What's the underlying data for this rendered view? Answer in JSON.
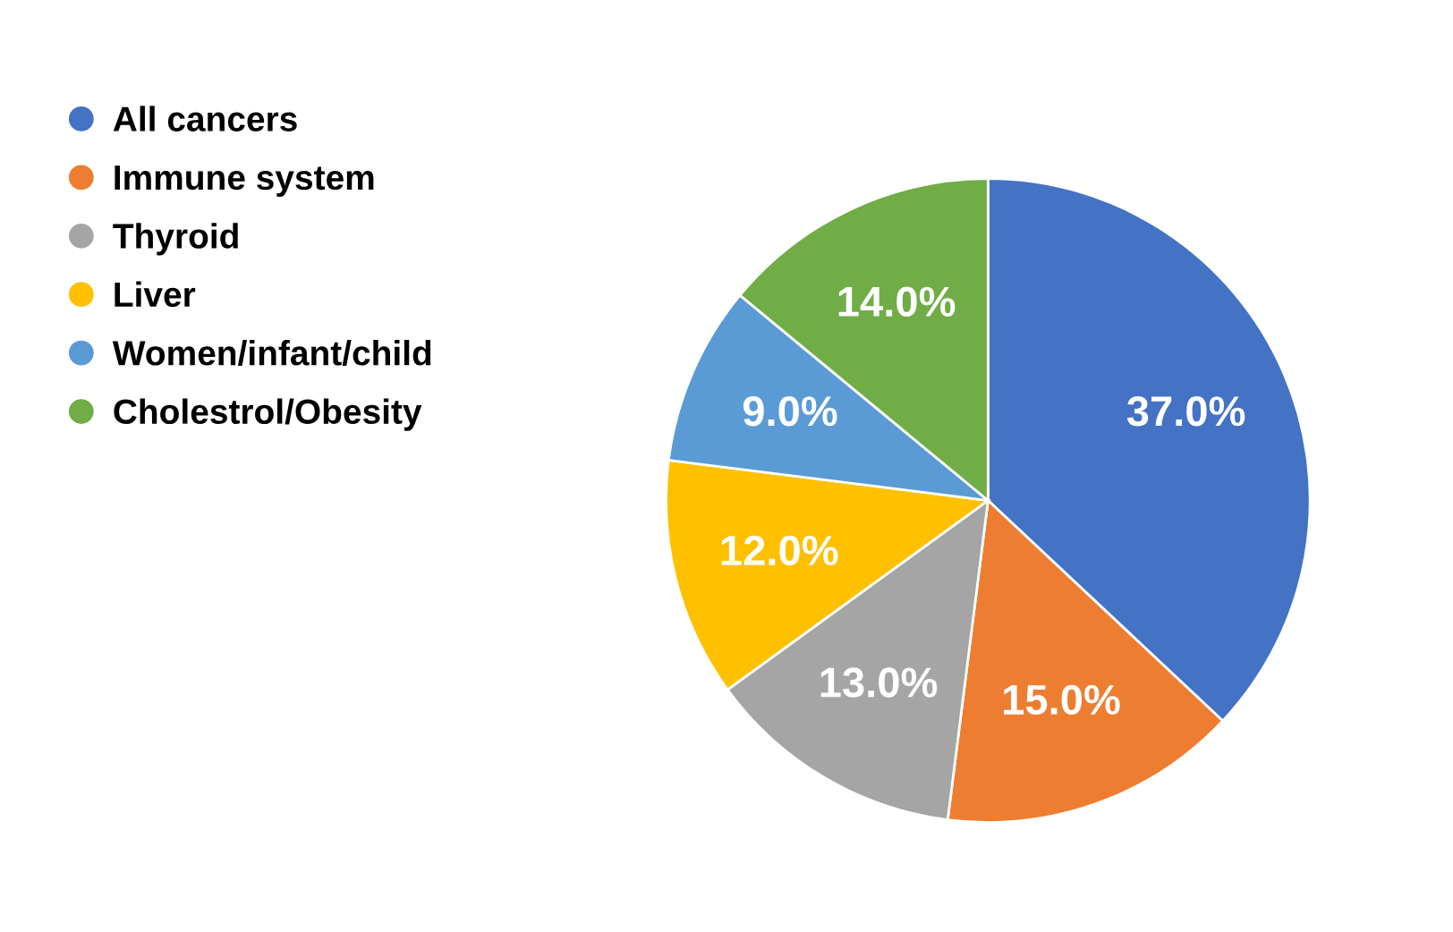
{
  "chart_data": {
    "type": "pie",
    "categories": [
      "All cancers",
      "Immune system",
      "Thyroid",
      "Liver",
      "Women/infant/child",
      "Cholestrol/Obesity"
    ],
    "values": [
      37.0,
      15.0,
      13.0,
      12.0,
      9.0,
      14.0
    ],
    "colors": [
      "#4472c4",
      "#ed7d31",
      "#a5a5a5",
      "#ffc000",
      "#5b9bd5",
      "#70ad47"
    ],
    "value_labels": [
      "37.0%",
      "15.0%",
      "13.0%",
      "12.0%",
      "9.0%",
      "14.0%"
    ],
    "legend": "left"
  }
}
